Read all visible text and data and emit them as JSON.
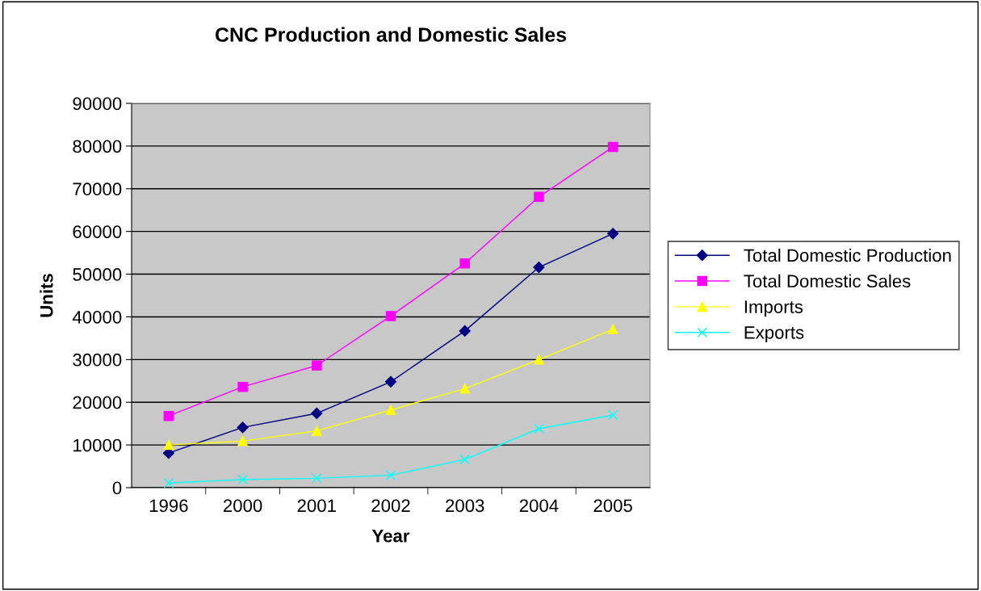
{
  "chart_data": {
    "type": "line",
    "title": "CNC Production and Domestic Sales",
    "xlabel": "Year",
    "ylabel": "Units",
    "categories": [
      "1996",
      "2000",
      "2001",
      "2002",
      "2003",
      "2004",
      "2005"
    ],
    "series": [
      {
        "name": "Total Domestic Production",
        "color": "#000080",
        "marker": "diamond",
        "values": [
          8100,
          14100,
          17400,
          24800,
          36700,
          51600,
          59500
        ]
      },
      {
        "name": "Total Domestic Sales",
        "color": "#ff00ff",
        "marker": "square",
        "values": [
          16800,
          23600,
          28600,
          40200,
          52500,
          68100,
          79800
        ]
      },
      {
        "name": "Imports",
        "color": "#ffff00",
        "marker": "triangle",
        "values": [
          10000,
          10900,
          13300,
          18200,
          23200,
          30000,
          37100
        ]
      },
      {
        "name": "Exports",
        "color": "#00ffff",
        "marker": "cross",
        "values": [
          1100,
          1900,
          2200,
          2900,
          6600,
          13800,
          17000
        ]
      }
    ],
    "ylim": [
      0,
      90000
    ],
    "yticks": [
      0,
      10000,
      20000,
      30000,
      40000,
      50000,
      60000,
      70000,
      80000,
      90000
    ],
    "grid": "y",
    "legend": "right",
    "line_style": "solid"
  }
}
